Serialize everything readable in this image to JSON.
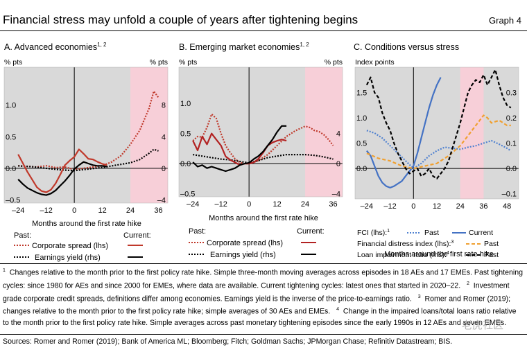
{
  "header": {
    "title": "Financial stress may unfold a couple of years after tightening begins",
    "graph_label": "Graph 4"
  },
  "legend_text": {
    "past": "Past:",
    "current": "Current:",
    "corporate_spread": "Corporate spread (lhs)",
    "earnings_yield": "Earnings yield (rhs)",
    "fci": "FCI (lhs):",
    "fci_sup": "1",
    "fci_past": "Past",
    "fci_current": "Current",
    "fdi": "Financial distress index (lhs):",
    "fdi_sup": "3",
    "fdi_past": "Past",
    "lir": "Loan impairment ratio (rhs):",
    "lir_sup": "4",
    "lir_past": "Past"
  },
  "notes": {
    "n1_marker": "1",
    "n1": "Changes relative to the month prior to the first policy rate hike. Simple three-month moving averages across episodes in 18 AEs and 17 EMEs. Past tightening cycles: since 1980 for AEs and since 2000 for EMEs, where data are available. Current tightening cycles: latest ones that started in 2020–22.",
    "n2_marker": "2",
    "n2": "Investment grade corporate credit spreads, definitions differ among economies. Earnings yield is the inverse of the price-to-earnings ratio.",
    "n3_marker": "3",
    "n3": "Romer and Romer (2019); changes relative to the month prior to the first policy rate hike; simple averages of 30 AEs and EMEs.",
    "n4_marker": "4",
    "n4": "Change in the impaired loans/total loans ratio relative to the month prior to the first policy rate hike. Simple averages across past monetary tightening episodes since the early 1990s in 12 AEs and seven EMEs."
  },
  "sources": "Sources: Romer and Romer (2019); Bank of America ML; Bloomberg; Fitch; Goldman Sachs; JPMorgan Chase; Refinitiv Datastream; BIS.",
  "watermark": "老虎社区",
  "colors": {
    "plot_bg": "#d9d9d9",
    "shade": "#f7cfd8",
    "red": "#c0392b",
    "dark_red": "#b22222",
    "black": "#000000",
    "blue_current": "#4472c4",
    "blue_past": "#4f81d0",
    "orange": "#f0a030"
  },
  "chart_data": [
    {
      "type": "line",
      "title": "A. Advanced economies",
      "title_sup": "1, 2",
      "xlabel": "Months around the first rate hike",
      "ylabel_left": "% pts",
      "ylabel_right": "% pts",
      "xlim": [
        -30,
        40
      ],
      "ylim_left": [
        -0.55,
        1.6
      ],
      "ylim_right": [
        -4.4,
        12.8
      ],
      "xticks": [
        "–24",
        "–12",
        "0",
        "12",
        "24",
        "36"
      ],
      "xtick_values": [
        -24,
        -12,
        0,
        12,
        24,
        36
      ],
      "yticks_left": [
        "–0.5",
        "0.0",
        "0.5",
        "1.0"
      ],
      "yticks_left_values": [
        -0.5,
        0,
        0.5,
        1.0
      ],
      "yticks_right": [
        "–4",
        "0",
        "4",
        "8"
      ],
      "yticks_right_values": [
        -4,
        0,
        4,
        8
      ],
      "shaded_x": [
        24,
        40
      ],
      "series": [
        {
          "name": "Corporate spread (lhs)",
          "group": "Past",
          "axis": "left",
          "style": "dotted",
          "color": "#c0392b",
          "x": [
            -24,
            -20,
            -16,
            -12,
            -8,
            -4,
            0,
            4,
            8,
            12,
            16,
            20,
            24,
            28,
            32,
            34,
            36
          ],
          "y": [
            0.04,
            0.03,
            0.02,
            0.04,
            0.01,
            0.02,
            -0.02,
            0.0,
            0.02,
            0.04,
            0.1,
            0.2,
            0.38,
            0.6,
            0.95,
            1.22,
            1.12
          ]
        },
        {
          "name": "Earnings yield (rhs)",
          "group": "Past",
          "axis": "right",
          "style": "dotted",
          "color": "#000000",
          "x": [
            -24,
            -18,
            -12,
            -6,
            0,
            6,
            12,
            18,
            24,
            28,
            32,
            34,
            36
          ],
          "y": [
            0.3,
            0.2,
            0.0,
            -0.2,
            -0.3,
            -0.1,
            0.1,
            0.4,
            0.7,
            1.1,
            1.9,
            2.4,
            2.2
          ]
        },
        {
          "name": "Corporate spread (lhs)",
          "group": "Current",
          "axis": "left",
          "style": "solid",
          "color": "#c0392b",
          "x": [
            -24,
            -22,
            -20,
            -18,
            -16,
            -14,
            -12,
            -10,
            -8,
            -6,
            -4,
            -2,
            0,
            2,
            4,
            6,
            8,
            10,
            12,
            14
          ],
          "y": [
            0.22,
            0.08,
            -0.06,
            -0.18,
            -0.3,
            -0.36,
            -0.38,
            -0.34,
            -0.24,
            -0.1,
            0.05,
            0.12,
            0.18,
            0.3,
            0.23,
            0.15,
            0.14,
            0.1,
            0.07,
            0.05
          ]
        },
        {
          "name": "Earnings yield (rhs)",
          "group": "Current",
          "axis": "right",
          "style": "solid",
          "color": "#000000",
          "x": [
            -24,
            -22,
            -20,
            -18,
            -16,
            -14,
            -12,
            -10,
            -8,
            -6,
            -4,
            -2,
            0,
            2,
            4,
            6,
            8,
            10,
            12,
            14
          ],
          "y": [
            -1.4,
            -2.0,
            -2.5,
            -2.8,
            -3.1,
            -3.3,
            -3.4,
            -3.2,
            -2.8,
            -2.2,
            -1.6,
            -0.9,
            -0.1,
            0.4,
            0.8,
            0.6,
            0.4,
            0.3,
            0.3,
            0.2
          ]
        }
      ]
    },
    {
      "type": "line",
      "title": "B. Emerging market economies",
      "title_sup": "1, 2",
      "xlabel": "Months around the first rate hike",
      "ylabel_left": "% pts",
      "ylabel_right": "% pts",
      "xlim": [
        -30,
        40
      ],
      "ylim_left": [
        -0.55,
        1.6
      ],
      "ylim_right": [
        -4.4,
        12.8
      ],
      "xticks": [
        "–24",
        "–12",
        "0",
        "12",
        "24",
        "36"
      ],
      "xtick_values": [
        -24,
        -12,
        0,
        12,
        24,
        36
      ],
      "yticks_left": [
        "–0.5",
        "0.0",
        "0.5",
        "1.0"
      ],
      "yticks_left_values": [
        -0.5,
        0,
        0.5,
        1.0
      ],
      "yticks_right": [
        "–4",
        "0",
        "4"
      ],
      "yticks_right_values": [
        -4,
        0,
        4
      ],
      "shaded_x": [
        24,
        40
      ],
      "series": [
        {
          "name": "Corporate spread (lhs)",
          "group": "Past",
          "axis": "left",
          "style": "dotted",
          "color": "#c0392b",
          "x": [
            -24,
            -22,
            -20,
            -18,
            -16,
            -14,
            -12,
            -10,
            -8,
            -6,
            -4,
            -2,
            0,
            4,
            8,
            12,
            16,
            20,
            24,
            26,
            28,
            30,
            32,
            34,
            36
          ],
          "y": [
            0.38,
            0.45,
            0.44,
            0.6,
            0.82,
            0.75,
            0.5,
            0.3,
            0.18,
            0.08,
            0.02,
            0.0,
            0.0,
            0.05,
            0.15,
            0.3,
            0.45,
            0.55,
            0.62,
            0.6,
            0.55,
            0.53,
            0.48,
            0.4,
            0.3
          ]
        },
        {
          "name": "Earnings yield (rhs)",
          "group": "Past",
          "axis": "right",
          "style": "dotted",
          "color": "#000000",
          "x": [
            -24,
            -20,
            -16,
            -12,
            -8,
            -4,
            0,
            4,
            8,
            12,
            16,
            20,
            24,
            28,
            32,
            36
          ],
          "y": [
            1.2,
            1.0,
            0.8,
            0.6,
            0.5,
            0.3,
            0.1,
            0.4,
            0.8,
            1.0,
            1.2,
            1.2,
            1.2,
            1.1,
            0.9,
            0.6
          ]
        },
        {
          "name": "Corporate spread (lhs)",
          "group": "Current",
          "axis": "left",
          "style": "solid",
          "color": "#b22222",
          "x": [
            -24,
            -22,
            -20,
            -18,
            -16,
            -14,
            -12,
            -10,
            -8,
            -6,
            -4,
            -2,
            0,
            2,
            4,
            6,
            8,
            10,
            12,
            14,
            16
          ],
          "y": [
            0.38,
            0.22,
            0.45,
            0.32,
            0.5,
            0.4,
            0.3,
            0.12,
            0.06,
            0.02,
            -0.02,
            0.0,
            0.0,
            0.02,
            0.08,
            0.18,
            0.3,
            0.35,
            0.38,
            0.4,
            0.38
          ]
        },
        {
          "name": "Earnings yield (rhs)",
          "group": "Current",
          "axis": "right",
          "style": "solid",
          "color": "#000000",
          "x": [
            -24,
            -22,
            -20,
            -18,
            -16,
            -14,
            -12,
            -10,
            -8,
            -6,
            -4,
            -2,
            0,
            2,
            4,
            6,
            8,
            10,
            12,
            14,
            16
          ],
          "y": [
            0.2,
            -0.4,
            -0.2,
            -0.6,
            -0.4,
            -0.6,
            -0.8,
            -1.0,
            -0.8,
            -0.6,
            -0.2,
            0.0,
            0.1,
            0.6,
            1.0,
            1.6,
            2.4,
            3.2,
            4.2,
            5.0,
            5.0
          ]
        }
      ]
    },
    {
      "type": "line",
      "title": "C. Conditions versus stress",
      "title_sup": "",
      "xlabel": "Months around the first rate hike",
      "ylabel_left": "Index points",
      "ylabel_right": "",
      "xlim": [
        -30,
        54
      ],
      "ylim_left": [
        -0.6,
        2.0
      ],
      "ylim_right": [
        -0.12,
        0.4
      ],
      "xticks": [
        "–24",
        "–12",
        "0",
        "12",
        "24",
        "36",
        "48"
      ],
      "xtick_values": [
        -24,
        -12,
        0,
        12,
        24,
        36,
        48
      ],
      "yticks_left": [
        "0.0",
        "0.5",
        "1.0",
        "1.5"
      ],
      "yticks_left_values": [
        0,
        0.5,
        1.0,
        1.5
      ],
      "yticks_right": [
        "–0.1",
        "0.0",
        "0.1",
        "0.2",
        "0.3"
      ],
      "yticks_right_values": [
        -0.1,
        0,
        0.1,
        0.2,
        0.3
      ],
      "shaded_x": [
        24,
        36
      ],
      "series": [
        {
          "name": "FCI (lhs)",
          "group": "Past",
          "axis": "left",
          "style": "dotted",
          "color": "#4f81d0",
          "x": [
            -24,
            -20,
            -16,
            -12,
            -8,
            -4,
            0,
            4,
            8,
            12,
            16,
            20,
            24,
            28,
            32,
            36,
            40,
            44,
            48,
            50
          ],
          "y": [
            0.75,
            0.7,
            0.6,
            0.45,
            0.3,
            0.15,
            0.0,
            0.1,
            0.25,
            0.35,
            0.42,
            0.4,
            0.38,
            0.42,
            0.45,
            0.5,
            0.55,
            0.48,
            0.4,
            0.35
          ]
        },
        {
          "name": "FCI (lhs)",
          "group": "Current",
          "axis": "left",
          "style": "solid",
          "color": "#4472c4",
          "x": [
            -24,
            -22,
            -20,
            -18,
            -16,
            -14,
            -12,
            -10,
            -8,
            -6,
            -4,
            -2,
            0,
            2,
            4,
            6,
            8,
            10,
            12,
            14
          ],
          "y": [
            0.35,
            0.25,
            0.05,
            -0.15,
            -0.28,
            -0.35,
            -0.38,
            -0.35,
            -0.3,
            -0.25,
            -0.15,
            -0.05,
            0.05,
            0.3,
            0.6,
            0.9,
            1.2,
            1.45,
            1.65,
            1.8
          ]
        },
        {
          "name": "Financial distress index (lhs)",
          "group": "Past",
          "axis": "left",
          "style": "dashed",
          "color": "#f0a030",
          "x": [
            -24,
            -18,
            -12,
            -6,
            0,
            6,
            12,
            18,
            24,
            28,
            32,
            36,
            38,
            40,
            44,
            48,
            50
          ],
          "y": [
            0.3,
            0.2,
            0.15,
            0.05,
            0.0,
            0.05,
            0.1,
            0.25,
            0.45,
            0.65,
            0.85,
            1.05,
            1.0,
            0.9,
            0.95,
            0.85,
            0.85
          ]
        },
        {
          "name": "Loan impairment ratio (rhs)",
          "group": "Past",
          "axis": "right",
          "style": "dashed",
          "color": "#000000",
          "x": [
            -24,
            -22,
            -20,
            -18,
            -16,
            -14,
            -12,
            -10,
            -8,
            -6,
            -4,
            -2,
            0,
            2,
            4,
            6,
            8,
            10,
            12,
            14,
            16,
            18,
            20,
            22,
            24,
            26,
            28,
            30,
            32,
            34,
            36,
            38,
            40,
            42,
            44,
            46,
            48,
            50
          ],
          "y": [
            0.33,
            0.36,
            0.3,
            0.28,
            0.22,
            0.18,
            0.15,
            0.1,
            0.06,
            0.03,
            0.0,
            -0.02,
            -0.01,
            0.0,
            -0.03,
            -0.02,
            0.0,
            -0.03,
            -0.04,
            -0.02,
            0.0,
            0.03,
            0.08,
            0.13,
            0.18,
            0.24,
            0.3,
            0.33,
            0.35,
            0.34,
            0.37,
            0.33,
            0.36,
            0.39,
            0.33,
            0.28,
            0.25,
            0.24
          ]
        }
      ]
    }
  ]
}
